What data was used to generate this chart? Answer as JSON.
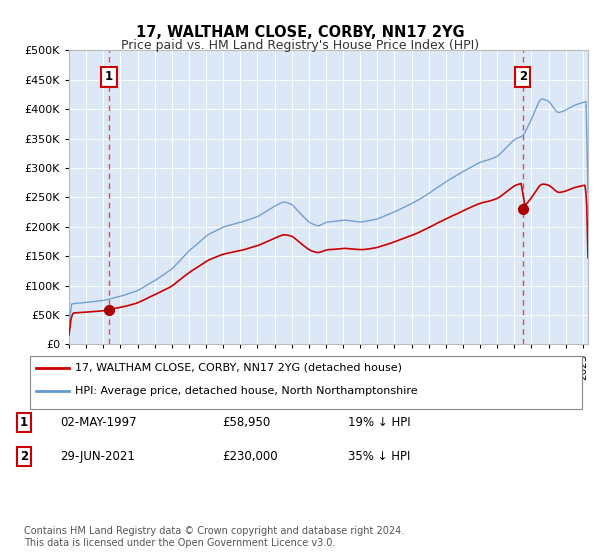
{
  "title": "17, WALTHAM CLOSE, CORBY, NN17 2YG",
  "subtitle": "Price paid vs. HM Land Registry's House Price Index (HPI)",
  "legend_line1": "17, WALTHAM CLOSE, CORBY, NN17 2YG (detached house)",
  "legend_line2": "HPI: Average price, detached house, North Northamptonshire",
  "transaction1_date": "02-MAY-1997",
  "transaction1_price": 58950,
  "transaction1_label": "19% ↓ HPI",
  "transaction2_date": "29-JUN-2021",
  "transaction2_price": 230000,
  "transaction2_label": "35% ↓ HPI",
  "footnote": "Contains HM Land Registry data © Crown copyright and database right 2024.\nThis data is licensed under the Open Government Licence v3.0.",
  "ylim": [
    0,
    500000
  ],
  "yticks": [
    0,
    50000,
    100000,
    150000,
    200000,
    250000,
    300000,
    350000,
    400000,
    450000,
    500000
  ],
  "xlim_start": 1995.0,
  "xlim_end": 2025.3,
  "price_line_color": "#cc0000",
  "hpi_line_color": "#6699cc",
  "background_color": "#ffffff",
  "plot_bg_color": "#dce8f5",
  "grid_color": "#ffffff",
  "transaction1_x": 1997.33,
  "transaction2_x": 2021.49,
  "marker_color": "#aa0000",
  "label_box_color": "#cc0000",
  "dashed_line_color": "#dd3333"
}
